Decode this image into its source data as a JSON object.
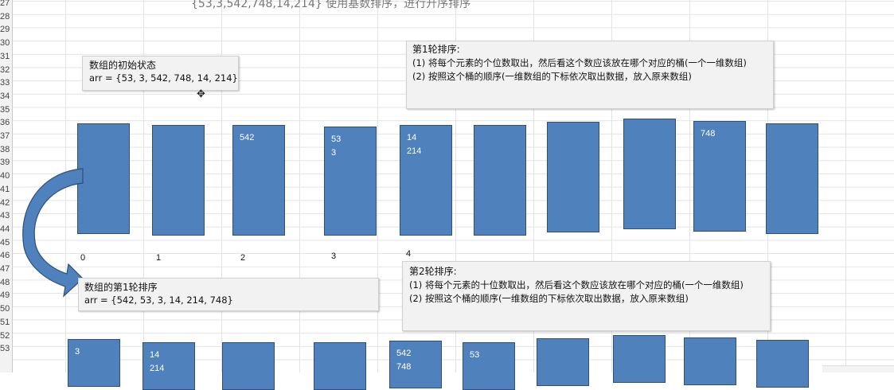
{
  "spreadsheet": {
    "row_numbers": [
      "27",
      "28",
      "29",
      "30",
      "31",
      "32",
      "33",
      "34",
      "35",
      "36",
      "37",
      "38",
      "39",
      "40",
      "41",
      "42",
      "43",
      "44",
      "45",
      "46",
      "47",
      "48",
      "49",
      "50",
      "51",
      "52",
      "53"
    ],
    "top_caption": "{53,3,542,748,14,214} 使用基数排序，进行升序排序"
  },
  "note_initial": {
    "title": "数组的初始状态",
    "array": "arr = {53, 3, 542, 748, 14, 214}"
  },
  "note_round1": {
    "title": "第1轮排序:",
    "line1": "(1) 将每个元素的个位数取出，然后看这个数应该放在哪个对应的桶(一个一维数组)",
    "line2": "(2) 按照这个桶的顺序(一维数组的下标依次取出数据，放入原来数组)"
  },
  "note_after_round1": {
    "title": "数组的第1轮排序",
    "array": "arr = {542, 53, 3, 14, 214, 748}"
  },
  "note_round2": {
    "title": "第2轮排序:",
    "line1": "(1) 将每个元素的十位数取出，然后看这个数应该放在哪个对应的桶(一个一维数组)",
    "line2": "(2) 按照这个桶的顺序(一维数组的下标依次取出数据，放入原来数组)"
  },
  "buckets_round1": [
    {
      "values": []
    },
    {
      "values": []
    },
    {
      "values": [
        "542"
      ]
    },
    {
      "values": [
        "53",
        "3"
      ]
    },
    {
      "values": [
        "14",
        "214"
      ]
    },
    {
      "values": []
    },
    {
      "values": []
    },
    {
      "values": []
    },
    {
      "values": [
        "748"
      ]
    },
    {
      "values": []
    }
  ],
  "bucket_indices": [
    "0",
    "1",
    "2",
    "3",
    "4"
  ],
  "buckets_round2": [
    {
      "values": [
        "3"
      ]
    },
    {
      "values": [
        "14",
        "214"
      ]
    },
    {
      "values": []
    },
    {
      "values": []
    },
    {
      "values": [
        "542",
        "748"
      ]
    },
    {
      "values": [
        "53"
      ]
    },
    {
      "values": []
    },
    {
      "values": []
    },
    {
      "values": []
    },
    {
      "values": []
    }
  ],
  "colors": {
    "bucket_fill": "#4f81bd",
    "bucket_border": "#2f4f7a",
    "note_bg": "#f2f2f2",
    "arrow": "#4f81bd"
  },
  "icons": {
    "cursor": "crosshair-cursor-icon",
    "arrow": "curved-arrow-icon"
  }
}
